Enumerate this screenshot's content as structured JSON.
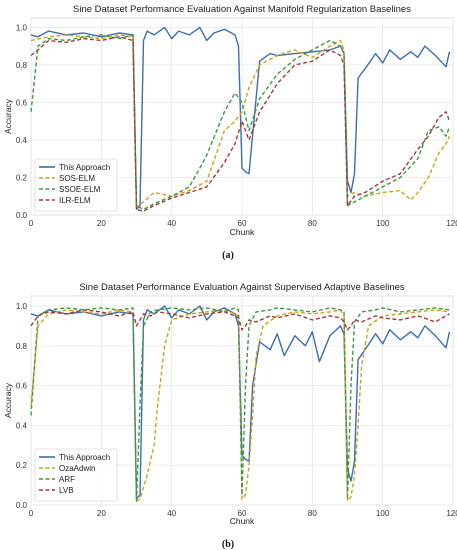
{
  "chart_data": [
    {
      "type": "line",
      "title": "Sine Dataset Performance Evaluation Against Manifold Regularization Baselines",
      "xlabel": "Chunk",
      "ylabel": "Accuracy",
      "caption": "(a)",
      "xlim": [
        0,
        120
      ],
      "ylim": [
        0,
        1.05
      ],
      "xticks": [
        0,
        20,
        40,
        60,
        80,
        100,
        120
      ],
      "yticks": [
        0.0,
        0.2,
        0.4,
        0.6,
        0.8,
        1.0
      ],
      "ytick_labels": [
        "0.0",
        "0.2",
        "0.4",
        "0.6",
        "0.8",
        "1.0"
      ],
      "grid": true,
      "legend_position": "lower-left",
      "series": [
        {
          "name": "This Approach",
          "color": "#3a6fb0",
          "dash": "solid",
          "x": [
            0,
            2,
            5,
            10,
            15,
            20,
            25,
            29,
            30,
            31,
            32,
            33,
            35,
            38,
            40,
            42,
            45,
            48,
            50,
            52,
            55,
            58,
            59,
            60,
            61,
            62,
            65,
            68,
            70,
            75,
            80,
            85,
            88,
            89,
            90,
            91,
            92,
            93,
            95,
            98,
            100,
            102,
            105,
            108,
            110,
            112,
            115,
            118,
            119
          ],
          "y": [
            0.96,
            0.95,
            0.98,
            0.96,
            0.97,
            0.95,
            0.97,
            0.96,
            0.03,
            0.05,
            0.93,
            0.98,
            0.96,
            1.0,
            0.94,
            0.98,
            0.96,
            1.0,
            0.93,
            0.97,
            0.99,
            0.96,
            0.9,
            0.25,
            0.23,
            0.22,
            0.82,
            0.86,
            0.85,
            0.86,
            0.87,
            0.88,
            0.9,
            0.86,
            0.18,
            0.12,
            0.22,
            0.73,
            0.78,
            0.86,
            0.81,
            0.88,
            0.83,
            0.87,
            0.84,
            0.9,
            0.85,
            0.79,
            0.87
          ]
        },
        {
          "name": "SOS-ELM",
          "color": "#d4a017",
          "dash": "dashed",
          "x": [
            0,
            5,
            10,
            15,
            20,
            25,
            29,
            30,
            32,
            35,
            40,
            45,
            50,
            55,
            58,
            60,
            62,
            65,
            70,
            75,
            80,
            85,
            88,
            89,
            90,
            92,
            95,
            100,
            105,
            108,
            110,
            113,
            116,
            118,
            119
          ],
          "y": [
            0.93,
            0.95,
            0.96,
            0.95,
            0.94,
            0.96,
            0.95,
            0.04,
            0.07,
            0.12,
            0.1,
            0.13,
            0.18,
            0.45,
            0.5,
            0.55,
            0.68,
            0.8,
            0.85,
            0.88,
            0.84,
            0.9,
            0.93,
            0.88,
            0.1,
            0.12,
            0.1,
            0.12,
            0.13,
            0.08,
            0.12,
            0.2,
            0.33,
            0.38,
            0.42
          ]
        },
        {
          "name": "SSOE-ELM",
          "color": "#3d9a40",
          "dash": "dashed",
          "x": [
            0,
            2,
            5,
            10,
            15,
            20,
            25,
            29,
            30,
            32,
            35,
            40,
            45,
            48,
            50,
            55,
            58,
            60,
            62,
            65,
            70,
            75,
            80,
            85,
            88,
            89,
            90,
            92,
            95,
            100,
            105,
            110,
            113,
            116,
            118,
            119
          ],
          "y": [
            0.55,
            0.9,
            0.94,
            0.93,
            0.95,
            0.96,
            0.94,
            0.96,
            0.05,
            0.03,
            0.06,
            0.1,
            0.15,
            0.25,
            0.32,
            0.55,
            0.65,
            0.6,
            0.45,
            0.62,
            0.75,
            0.83,
            0.88,
            0.93,
            0.9,
            0.86,
            0.05,
            0.07,
            0.1,
            0.15,
            0.2,
            0.3,
            0.45,
            0.47,
            0.42,
            0.47
          ]
        },
        {
          "name": "ILR-ELM",
          "color": "#a33a3a",
          "dash": "dashed",
          "x": [
            0,
            2,
            5,
            10,
            15,
            20,
            25,
            29,
            30,
            32,
            35,
            40,
            45,
            50,
            55,
            58,
            60,
            62,
            65,
            70,
            75,
            80,
            85,
            88,
            89,
            90,
            92,
            95,
            100,
            105,
            110,
            113,
            116,
            118,
            119
          ],
          "y": [
            0.85,
            0.88,
            0.93,
            0.92,
            0.94,
            0.93,
            0.95,
            0.93,
            0.03,
            0.02,
            0.05,
            0.09,
            0.12,
            0.15,
            0.28,
            0.38,
            0.5,
            0.4,
            0.55,
            0.7,
            0.8,
            0.82,
            0.88,
            0.85,
            0.8,
            0.05,
            0.1,
            0.12,
            0.18,
            0.22,
            0.35,
            0.42,
            0.52,
            0.55,
            0.5
          ]
        }
      ]
    },
    {
      "type": "line",
      "title": "Sine Dataset Performance Evaluation Against Supervised Adaptive Baselines",
      "xlabel": "Chunk",
      "ylabel": "Accuracy",
      "caption": "(b)",
      "xlim": [
        0,
        120
      ],
      "ylim": [
        0,
        1.05
      ],
      "xticks": [
        0,
        20,
        40,
        60,
        80,
        100,
        120
      ],
      "yticks": [
        0.0,
        0.2,
        0.4,
        0.6,
        0.8,
        1.0
      ],
      "ytick_labels": [
        "0.0",
        "0.2",
        "0.4",
        "0.6",
        "0.8",
        "1.0"
      ],
      "grid": true,
      "legend_position": "lower-left",
      "series": [
        {
          "name": "This Approach",
          "color": "#3a6fb0",
          "dash": "solid",
          "x": [
            0,
            2,
            5,
            10,
            15,
            20,
            25,
            29,
            30,
            31,
            32,
            33,
            35,
            38,
            40,
            42,
            45,
            48,
            50,
            52,
            55,
            58,
            59,
            60,
            61,
            62,
            63,
            65,
            68,
            70,
            72,
            75,
            78,
            80,
            82,
            85,
            88,
            89,
            90,
            91,
            92,
            93,
            95,
            98,
            100,
            102,
            105,
            108,
            110,
            112,
            115,
            118,
            119
          ],
          "y": [
            0.96,
            0.95,
            0.98,
            0.96,
            0.97,
            0.95,
            0.97,
            0.96,
            0.03,
            0.05,
            0.93,
            0.98,
            0.96,
            1.0,
            0.94,
            0.98,
            0.96,
            1.0,
            0.93,
            0.97,
            0.99,
            0.96,
            0.9,
            0.25,
            0.23,
            0.22,
            0.6,
            0.82,
            0.78,
            0.86,
            0.75,
            0.85,
            0.8,
            0.87,
            0.72,
            0.85,
            0.9,
            0.86,
            0.18,
            0.12,
            0.22,
            0.73,
            0.78,
            0.86,
            0.81,
            0.88,
            0.83,
            0.87,
            0.84,
            0.9,
            0.85,
            0.79,
            0.87
          ]
        },
        {
          "name": "OzaAdwin",
          "color": "#d4a017",
          "dash": "dashed",
          "x": [
            0,
            2,
            5,
            10,
            15,
            20,
            25,
            29,
            30,
            31,
            33,
            35,
            36,
            38,
            40,
            45,
            50,
            55,
            58,
            59,
            60,
            61,
            62,
            63,
            64,
            66,
            70,
            75,
            80,
            85,
            88,
            89,
            90,
            91,
            92,
            93,
            94,
            96,
            100,
            105,
            110,
            115,
            119
          ],
          "y": [
            0.5,
            0.9,
            0.96,
            0.98,
            0.97,
            0.96,
            0.98,
            0.97,
            0.02,
            0.03,
            0.15,
            0.3,
            0.5,
            0.8,
            0.93,
            0.96,
            0.97,
            0.98,
            0.96,
            0.95,
            0.03,
            0.05,
            0.2,
            0.45,
            0.75,
            0.9,
            0.95,
            0.97,
            0.96,
            0.97,
            0.98,
            0.95,
            0.02,
            0.04,
            0.15,
            0.4,
            0.7,
            0.9,
            0.95,
            0.96,
            0.97,
            0.98,
            0.97
          ]
        },
        {
          "name": "ARF",
          "color": "#3d9a40",
          "dash": "dashed",
          "x": [
            0,
            2,
            5,
            10,
            15,
            20,
            25,
            29,
            30,
            31,
            32,
            34,
            36,
            40,
            45,
            50,
            55,
            58,
            59,
            60,
            61,
            62,
            64,
            68,
            70,
            75,
            80,
            85,
            88,
            89,
            90,
            91,
            92,
            94,
            98,
            100,
            105,
            110,
            115,
            119
          ],
          "y": [
            0.45,
            0.95,
            0.98,
            0.99,
            0.98,
            0.99,
            0.98,
            0.99,
            0.02,
            0.5,
            0.9,
            0.97,
            0.98,
            0.99,
            0.98,
            0.99,
            0.97,
            0.99,
            0.98,
            0.05,
            0.6,
            0.9,
            0.97,
            0.98,
            0.99,
            0.98,
            0.97,
            0.99,
            0.98,
            0.97,
            0.03,
            0.6,
            0.92,
            0.97,
            0.98,
            0.99,
            0.97,
            0.98,
            0.99,
            0.98
          ]
        },
        {
          "name": "LVB",
          "color": "#a33a3a",
          "dash": "dashed",
          "x": [
            0,
            2,
            5,
            10,
            15,
            20,
            25,
            29,
            30,
            31,
            32,
            34,
            36,
            40,
            45,
            50,
            55,
            58,
            59,
            60,
            61,
            62,
            64,
            68,
            70,
            75,
            80,
            85,
            88,
            89,
            90,
            91,
            92,
            94,
            98,
            100,
            105,
            110,
            115,
            119
          ],
          "y": [
            0.9,
            0.95,
            0.97,
            0.96,
            0.98,
            0.97,
            0.95,
            0.97,
            0.9,
            0.93,
            0.96,
            0.95,
            0.97,
            0.96,
            0.94,
            0.96,
            0.97,
            0.95,
            0.94,
            0.88,
            0.9,
            0.93,
            0.92,
            0.95,
            0.94,
            0.96,
            0.93,
            0.95,
            0.94,
            0.92,
            0.88,
            0.9,
            0.93,
            0.92,
            0.95,
            0.94,
            0.93,
            0.95,
            0.92,
            0.96
          ]
        }
      ]
    }
  ]
}
